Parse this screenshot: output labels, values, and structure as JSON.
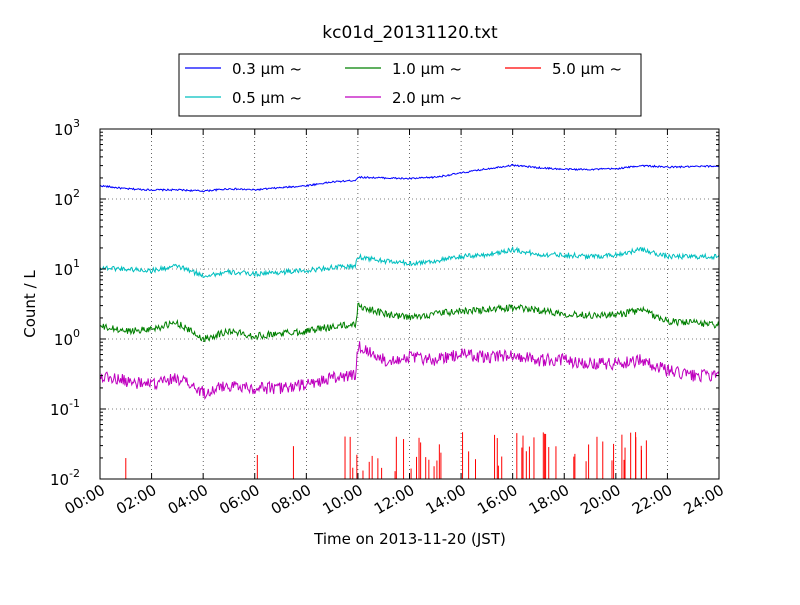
{
  "chart_data": {
    "type": "line",
    "title": "kc01d_20131120.txt",
    "xlabel": "Time on 2013-11-20 (JST)",
    "ylabel": "Count / L",
    "yscale": "log",
    "ylim": [
      0.01,
      1000
    ],
    "xlim": [
      0,
      24
    ],
    "grid": true,
    "legend_position": "top, above plot",
    "x_tick_labels": [
      "00:00",
      "02:00",
      "04:00",
      "06:00",
      "08:00",
      "10:00",
      "12:00",
      "14:00",
      "16:00",
      "18:00",
      "20:00",
      "22:00",
      "24:00"
    ],
    "y_tick_labels": [
      {
        "base": "10",
        "exp": "-2"
      },
      {
        "base": "10",
        "exp": "-1"
      },
      {
        "base": "10",
        "exp": "0"
      },
      {
        "base": "10",
        "exp": "1"
      },
      {
        "base": "10",
        "exp": "2"
      },
      {
        "base": "10",
        "exp": "3"
      }
    ],
    "series": [
      {
        "name": "0.3 μm ~",
        "color": "#0000ff",
        "x": [
          0,
          1,
          2,
          3,
          4,
          5,
          6,
          7,
          8,
          9,
          9.9,
          10,
          11,
          12,
          13,
          14,
          15,
          16,
          17,
          18,
          19,
          20,
          21,
          22,
          23,
          24
        ],
        "y": [
          155,
          140,
          135,
          135,
          130,
          140,
          135,
          145,
          155,
          175,
          185,
          205,
          200,
          195,
          205,
          235,
          270,
          305,
          280,
          265,
          265,
          270,
          300,
          285,
          290,
          295
        ]
      },
      {
        "name": "0.5 μm ~",
        "color": "#00bfbf",
        "x": [
          0,
          1,
          2,
          3,
          4,
          5,
          6,
          7,
          8,
          9,
          9.9,
          10,
          11,
          12,
          13,
          14,
          15,
          16,
          17,
          18,
          19,
          20,
          21,
          22,
          23,
          24
        ],
        "y": [
          10.5,
          10,
          9.5,
          11,
          8,
          9,
          8.5,
          9,
          9.5,
          10.5,
          11,
          15,
          13,
          12,
          13,
          15,
          16,
          19,
          16,
          16,
          15,
          16,
          19,
          15,
          15,
          15
        ]
      },
      {
        "name": "1.0 μm ~",
        "color": "#008000",
        "x": [
          0,
          1,
          2,
          3,
          4,
          5,
          6,
          7,
          8,
          9,
          9.9,
          10,
          11,
          12,
          13,
          14,
          15,
          16,
          17,
          18,
          19,
          20,
          21,
          22,
          23,
          24
        ],
        "y": [
          1.5,
          1.3,
          1.4,
          1.7,
          1.0,
          1.3,
          1.1,
          1.2,
          1.3,
          1.5,
          1.6,
          3.0,
          2.3,
          2.0,
          2.3,
          2.5,
          2.6,
          2.8,
          2.6,
          2.3,
          2.2,
          2.2,
          2.6,
          1.8,
          1.7,
          1.6
        ]
      },
      {
        "name": "2.0 μm ~",
        "color": "#bf00bf",
        "x": [
          0,
          1,
          2,
          3,
          4,
          5,
          6,
          7,
          8,
          9,
          9.9,
          10,
          11,
          12,
          13,
          14,
          15,
          16,
          17,
          18,
          19,
          20,
          21,
          22,
          23,
          24
        ],
        "y": [
          0.3,
          0.25,
          0.22,
          0.28,
          0.17,
          0.22,
          0.2,
          0.2,
          0.22,
          0.28,
          0.3,
          0.8,
          0.5,
          0.55,
          0.5,
          0.6,
          0.55,
          0.6,
          0.5,
          0.5,
          0.45,
          0.45,
          0.5,
          0.35,
          0.3,
          0.3
        ]
      },
      {
        "name": "5.0 μm ~",
        "color": "#ff0000",
        "x": [],
        "y": []
      }
    ]
  }
}
